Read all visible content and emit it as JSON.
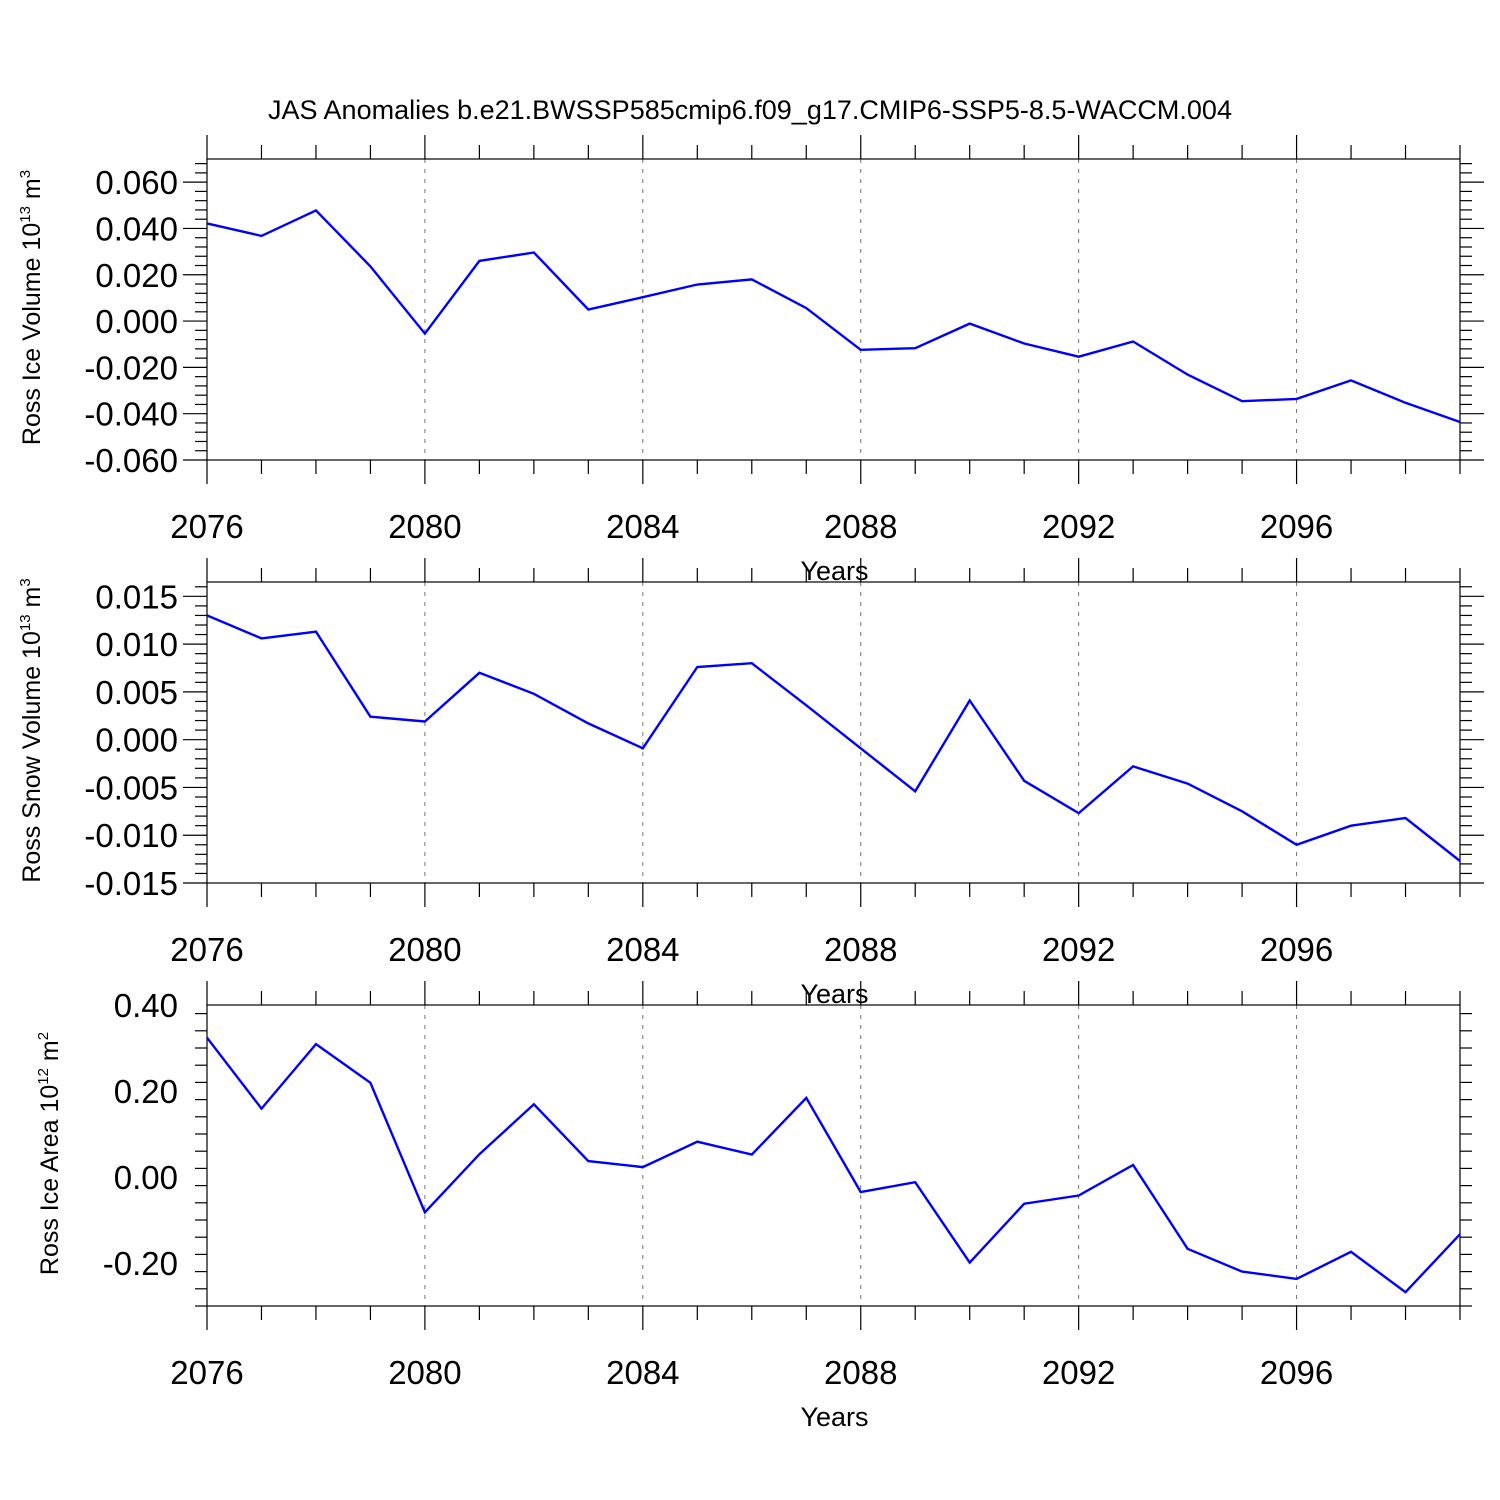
{
  "title": "JAS Anomalies b.e21.BWSSP585cmip6.f09_g17.CMIP6-SSP5-8.5-WACCM.004",
  "colors": {
    "series": "#0000ff",
    "axes": "#000000"
  },
  "chart_data": [
    {
      "type": "line",
      "title": "",
      "xlabel": "Years",
      "ylabel_parts": [
        "Ross Ice Volume 10",
        "13",
        " m",
        "3"
      ],
      "xlim": [
        2076,
        2099
      ],
      "ylim": [
        -0.06,
        0.07
      ],
      "xticks": [
        2076,
        2080,
        2084,
        2088,
        2092,
        2096
      ],
      "yticks": [
        -0.06,
        -0.04,
        -0.02,
        0.0,
        0.02,
        0.04,
        0.06
      ],
      "ytick_labels": [
        "-0.060",
        "-0.040",
        "-0.020",
        "0.000",
        "0.020",
        "0.040",
        "0.060"
      ],
      "grid": "x-dashed",
      "x": [
        2076,
        2077,
        2078,
        2079,
        2080,
        2081,
        2082,
        2083,
        2084,
        2085,
        2086,
        2087,
        2088,
        2089,
        2090,
        2091,
        2092,
        2093,
        2094,
        2095,
        2096,
        2097,
        2098,
        2099
      ],
      "series": [
        {
          "values": [
            0.0422,
            0.0368,
            0.0478,
            0.0236,
            -0.0054,
            0.026,
            0.0296,
            0.005,
            0.0103,
            0.0158,
            0.018,
            0.0056,
            -0.0124,
            -0.0117,
            -0.0011,
            -0.0097,
            -0.0154,
            -0.0088,
            -0.0231,
            -0.0346,
            -0.0336,
            -0.0256,
            -0.0353,
            -0.0436
          ]
        }
      ]
    },
    {
      "type": "line",
      "title": "",
      "xlabel": "Years",
      "ylabel_parts": [
        "Ross Snow Volume 10",
        "13",
        " m",
        "3"
      ],
      "xlim": [
        2076,
        2099
      ],
      "ylim": [
        -0.015,
        0.0165
      ],
      "xticks": [
        2076,
        2080,
        2084,
        2088,
        2092,
        2096
      ],
      "yticks": [
        -0.015,
        -0.01,
        -0.005,
        0.0,
        0.005,
        0.01,
        0.015
      ],
      "ytick_labels": [
        "-0.015",
        "-0.010",
        "-0.005",
        "0.000",
        "0.005",
        "0.010",
        "0.015"
      ],
      "grid": "x-dashed",
      "x": [
        2076,
        2077,
        2078,
        2079,
        2080,
        2081,
        2082,
        2083,
        2084,
        2085,
        2086,
        2087,
        2088,
        2089,
        2090,
        2091,
        2092,
        2093,
        2094,
        2095,
        2096,
        2097,
        2098,
        2099
      ],
      "series": [
        {
          "values": [
            0.013,
            0.0106,
            0.0113,
            0.0024,
            0.0019,
            0.007,
            0.0048,
            0.0017,
            -0.0009,
            0.0076,
            0.008,
            0.0036,
            -0.0009,
            -0.0054,
            0.0041,
            -0.0043,
            -0.0077,
            -0.0028,
            -0.0046,
            -0.0075,
            -0.011,
            -0.009,
            -0.0082,
            -0.0127
          ]
        }
      ]
    },
    {
      "type": "line",
      "title": "",
      "xlabel": "Years",
      "ylabel_parts": [
        "Ross Ice Area 10",
        "12",
        " m",
        "2"
      ],
      "xlim": [
        2076,
        2099
      ],
      "ylim": [
        -0.3,
        0.4
      ],
      "xticks": [
        2076,
        2080,
        2084,
        2088,
        2092,
        2096
      ],
      "yticks": [
        -0.2,
        0.0,
        0.2,
        0.4
      ],
      "ytick_labels": [
        "-0.20",
        "0.00",
        "0.20",
        "0.40"
      ],
      "grid": "x-dashed",
      "x": [
        2076,
        2077,
        2078,
        2079,
        2080,
        2081,
        2082,
        2083,
        2084,
        2085,
        2086,
        2087,
        2088,
        2089,
        2090,
        2091,
        2092,
        2093,
        2094,
        2095,
        2096,
        2097,
        2098,
        2099
      ],
      "series": [
        {
          "values": [
            0.324,
            0.159,
            0.309,
            0.219,
            -0.082,
            0.053,
            0.169,
            0.037,
            0.023,
            0.082,
            0.052,
            0.184,
            -0.035,
            -0.012,
            -0.199,
            -0.062,
            -0.043,
            0.028,
            -0.167,
            -0.22,
            -0.237,
            -0.174,
            -0.268,
            -0.133
          ]
        }
      ]
    }
  ]
}
